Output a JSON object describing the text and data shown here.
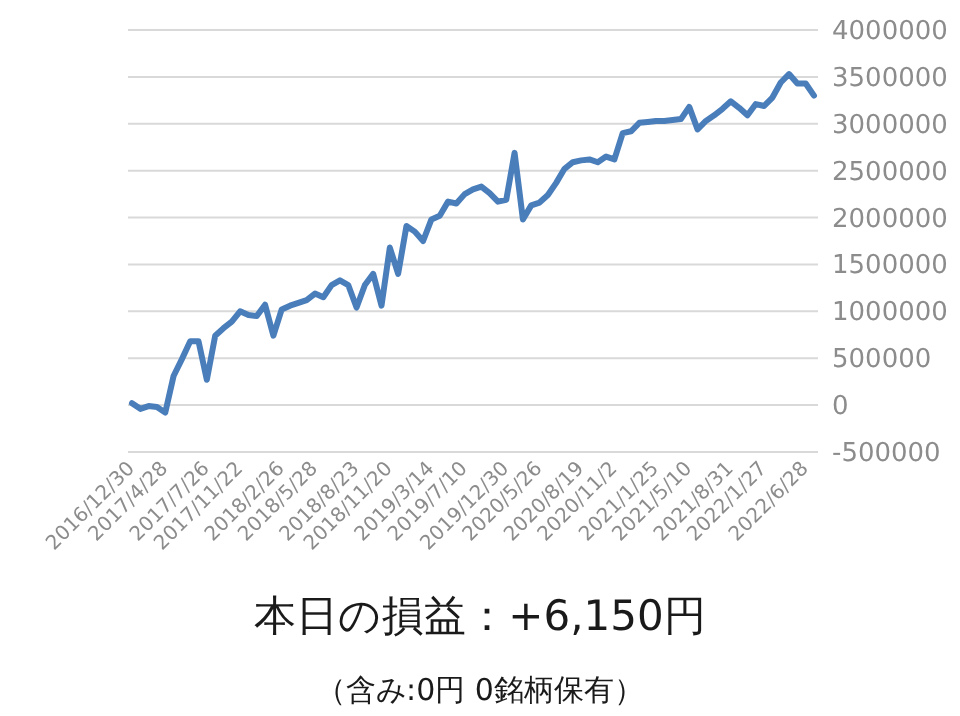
{
  "chart_data": {
    "type": "line",
    "title": "本日の損益：+6,150円",
    "subtitle": "（含み:0円 0銘柄保有）",
    "categories": [
      "2016/12/30",
      null,
      null,
      null,
      "2017/4/28",
      null,
      null,
      null,
      null,
      "2017/7/26",
      null,
      null,
      null,
      "2017/11/22",
      null,
      null,
      null,
      null,
      "2018/2/26",
      null,
      null,
      null,
      "2018/5/28",
      null,
      null,
      null,
      null,
      "2018/8/23",
      null,
      null,
      null,
      "2018/11/20",
      null,
      null,
      null,
      null,
      "2019/3/14",
      null,
      null,
      null,
      "2019/7/10",
      null,
      null,
      null,
      null,
      "2019/12/30",
      null,
      null,
      null,
      "2020/5/26",
      null,
      null,
      null,
      null,
      "2020/8/19",
      null,
      null,
      null,
      "2020/11/2",
      null,
      null,
      null,
      null,
      "2021/1/25",
      null,
      null,
      null,
      "2021/5/10",
      null,
      null,
      null,
      null,
      "2021/8/31",
      null,
      null,
      null,
      "2022/1/27",
      null,
      null,
      null,
      null,
      "2022/6/28",
      null
    ],
    "series": [
      {
        "color": "#4a7ebb",
        "values": [
          20000,
          -40000,
          -10000,
          -20000,
          -80000,
          310000,
          490000,
          680000,
          680000,
          270000,
          740000,
          820000,
          890000,
          1000000,
          960000,
          950000,
          1070000,
          740000,
          1020000,
          1060000,
          1090000,
          1120000,
          1190000,
          1150000,
          1280000,
          1330000,
          1280000,
          1040000,
          1280000,
          1400000,
          1060000,
          1680000,
          1400000,
          1910000,
          1850000,
          1750000,
          1980000,
          2020000,
          2170000,
          2150000,
          2250000,
          2300000,
          2330000,
          2260000,
          2170000,
          2190000,
          2690000,
          1980000,
          2130000,
          2160000,
          2240000,
          2370000,
          2520000,
          2590000,
          2610000,
          2620000,
          2590000,
          2650000,
          2620000,
          2900000,
          2920000,
          3010000,
          3020000,
          3030000,
          3030000,
          3040000,
          3050000,
          3180000,
          2940000,
          3030000,
          3090000,
          3160000,
          3240000,
          3170000,
          3090000,
          3210000,
          3190000,
          3280000,
          3440000,
          3530000,
          3430000,
          3430000,
          3300000
        ]
      }
    ],
    "ylim": [
      -500000,
      4000000
    ],
    "yticks": [
      -500000,
      0,
      500000,
      1000000,
      1500000,
      2000000,
      2500000,
      3000000,
      3500000,
      4000000
    ],
    "grid": "y",
    "marker": "none",
    "line_style": "solid"
  }
}
